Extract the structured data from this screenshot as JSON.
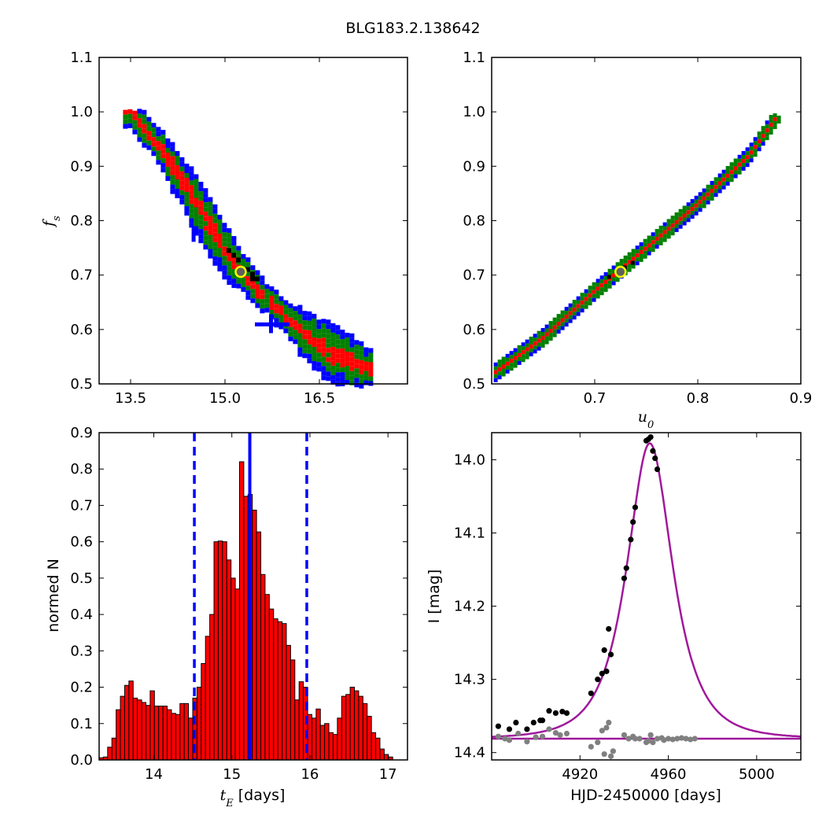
{
  "figure": {
    "title": "BLG183.2.138642"
  },
  "chart_data": [
    {
      "id": "fs-vs-tE",
      "type": "heatmap",
      "xlabel": "",
      "ylabel": "f_s",
      "xlim": [
        13.0,
        17.9
      ],
      "ylim": [
        0.5,
        1.1
      ],
      "xticks": [
        13.5,
        15.0,
        16.5
      ],
      "xtick_labels": [
        "13.5",
        "15.0",
        "16.5"
      ],
      "yticks": [
        0.5,
        0.6,
        0.7,
        0.8,
        0.9,
        1.0,
        1.1
      ],
      "ytick_labels": [
        "0.5",
        "0.6",
        "0.7",
        "0.8",
        "0.9",
        "1.0",
        "1.1"
      ],
      "band_centerline": [
        [
          13.5,
          1.0
        ],
        [
          14.0,
          0.93
        ],
        [
          14.5,
          0.84
        ],
        [
          15.0,
          0.745
        ],
        [
          15.5,
          0.675
        ],
        [
          16.0,
          0.62
        ],
        [
          16.5,
          0.57
        ],
        [
          17.2,
          0.53
        ]
      ],
      "contour_levels": [
        "blue",
        "green",
        "red",
        "black"
      ],
      "colors": {
        "outer": "#0000ff",
        "middle": "#008000",
        "inner": "#ff0000",
        "core": "#000000"
      },
      "best_fit": {
        "x": 15.25,
        "y": 0.706
      }
    },
    {
      "id": "fs-vs-u0",
      "type": "heatmap",
      "xlabel": "u_0",
      "ylabel": "",
      "xlim": [
        0.6,
        0.9
      ],
      "ylim": [
        0.5,
        1.1
      ],
      "xticks": [
        0.7,
        0.8,
        0.9
      ],
      "xtick_labels": [
        "0.7",
        "0.8",
        "0.9"
      ],
      "yticks": [
        0.5,
        0.6,
        0.7,
        0.8,
        0.9,
        1.0,
        1.1
      ],
      "ytick_labels": [
        "0.5",
        "0.6",
        "0.7",
        "0.8",
        "0.9",
        "1.0",
        "1.1"
      ],
      "band_centerline": [
        [
          0.603,
          0.52
        ],
        [
          0.65,
          0.585
        ],
        [
          0.7,
          0.67
        ],
        [
          0.75,
          0.75
        ],
        [
          0.8,
          0.83
        ],
        [
          0.85,
          0.92
        ],
        [
          0.88,
          1.0
        ]
      ],
      "best_fit": {
        "x": 0.725,
        "y": 0.706
      }
    },
    {
      "id": "tE-histogram",
      "type": "bar",
      "xlabel": "t_E [days]",
      "ylabel": "normed N",
      "xlim": [
        13.3,
        17.25
      ],
      "ylim": [
        0.0,
        0.9
      ],
      "xticks": [
        14,
        15,
        16,
        17
      ],
      "xtick_labels": [
        "14",
        "15",
        "16",
        "17"
      ],
      "yticks": [
        0.0,
        0.1,
        0.2,
        0.3,
        0.4,
        0.5,
        0.6,
        0.7,
        0.8,
        0.9
      ],
      "ytick_labels": [
        "0.0",
        "0.1",
        "0.2",
        "0.3",
        "0.4",
        "0.5",
        "0.6",
        "0.7",
        "0.8",
        "0.9"
      ],
      "bin_start": 13.3,
      "bin_width": 0.0545,
      "values": [
        0.006,
        0.008,
        0.035,
        0.06,
        0.138,
        0.175,
        0.205,
        0.217,
        0.17,
        0.165,
        0.158,
        0.15,
        0.19,
        0.148,
        0.148,
        0.148,
        0.138,
        0.128,
        0.125,
        0.155,
        0.155,
        0.115,
        0.17,
        0.2,
        0.265,
        0.34,
        0.4,
        0.6,
        0.602,
        0.6,
        0.55,
        0.5,
        0.47,
        0.82,
        0.725,
        0.73,
        0.687,
        0.627,
        0.51,
        0.455,
        0.415,
        0.388,
        0.38,
        0.375,
        0.315,
        0.275,
        0.165,
        0.215,
        0.2,
        0.125,
        0.115,
        0.14,
        0.095,
        0.1,
        0.075,
        0.07,
        0.115,
        0.175,
        0.18,
        0.2,
        0.19,
        0.175,
        0.155,
        0.12,
        0.075,
        0.06,
        0.03,
        0.015,
        0.008
      ],
      "bar_color": "#ff0000",
      "best_value": 15.23,
      "lower_bound": 14.52,
      "upper_bound": 15.96,
      "line_color": "#0000ff"
    },
    {
      "id": "light-curve",
      "type": "scatter",
      "xlabel": "HJD-2450000 [days]",
      "ylabel": "I [mag]",
      "xlim": [
        4880,
        5020
      ],
      "ylim": [
        14.41,
        13.963
      ],
      "xticks": [
        4920,
        4960,
        5000
      ],
      "xtick_labels": [
        "4920",
        "4960",
        "5000"
      ],
      "yticks": [
        14.0,
        14.1,
        14.2,
        14.3,
        14.4
      ],
      "ytick_labels": [
        "14.0",
        "14.1",
        "14.2",
        "14.3",
        "14.4"
      ],
      "model": {
        "t0": 4951.6,
        "tE": 15.23,
        "u0": 0.725,
        "fs": 0.706,
        "baseline": 14.381,
        "color": "#a0189c"
      },
      "data_points": [
        [
          4883,
          14.364
        ],
        [
          4888,
          14.368
        ],
        [
          4891,
          14.359
        ],
        [
          4896,
          14.368
        ],
        [
          4899,
          14.359
        ],
        [
          4902,
          14.356
        ],
        [
          4903,
          14.356
        ],
        [
          4906,
          14.343
        ],
        [
          4909,
          14.346
        ],
        [
          4912,
          14.344
        ],
        [
          4914,
          14.346
        ],
        [
          4925,
          14.319
        ],
        [
          4928,
          14.3
        ],
        [
          4930,
          14.292
        ],
        [
          4931,
          14.26
        ],
        [
          4932,
          14.289
        ],
        [
          4933,
          14.231
        ],
        [
          4934,
          14.266
        ],
        [
          4940,
          14.162
        ],
        [
          4941,
          14.148
        ],
        [
          4943,
          14.109
        ],
        [
          4944,
          14.085
        ],
        [
          4945,
          14.065
        ],
        [
          4950,
          13.974
        ],
        [
          4951,
          13.972
        ],
        [
          4952,
          13.969
        ],
        [
          4953,
          13.988
        ],
        [
          4954,
          13.998
        ],
        [
          4955,
          14.013
        ]
      ],
      "residual_points": [
        [
          4883,
          14.378
        ],
        [
          4886,
          14.381
        ],
        [
          4888,
          14.383
        ],
        [
          4892,
          14.374
        ],
        [
          4896,
          14.385
        ],
        [
          4900,
          14.379
        ],
        [
          4903,
          14.378
        ],
        [
          4906,
          14.368
        ],
        [
          4909,
          14.373
        ],
        [
          4911,
          14.376
        ],
        [
          4914,
          14.374
        ],
        [
          4925,
          14.392
        ],
        [
          4928,
          14.386
        ],
        [
          4930,
          14.37
        ],
        [
          4931,
          14.402
        ],
        [
          4932,
          14.366
        ],
        [
          4933,
          14.359
        ],
        [
          4934,
          14.405
        ],
        [
          4935,
          14.398
        ],
        [
          4940,
          14.376
        ],
        [
          4942,
          14.381
        ],
        [
          4944,
          14.378
        ],
        [
          4945,
          14.381
        ],
        [
          4947,
          14.381
        ],
        [
          4950,
          14.386
        ],
        [
          4951,
          14.384
        ],
        [
          4952,
          14.376
        ],
        [
          4953,
          14.386
        ],
        [
          4955,
          14.381
        ],
        [
          4957,
          14.38
        ],
        [
          4958,
          14.383
        ],
        [
          4960,
          14.381
        ],
        [
          4962,
          14.382
        ],
        [
          4964,
          14.381
        ],
        [
          4966,
          14.38
        ],
        [
          4968,
          14.381
        ],
        [
          4970,
          14.382
        ],
        [
          4972,
          14.381
        ]
      ],
      "data_color": "#000000",
      "residual_color": "#808080"
    }
  ]
}
